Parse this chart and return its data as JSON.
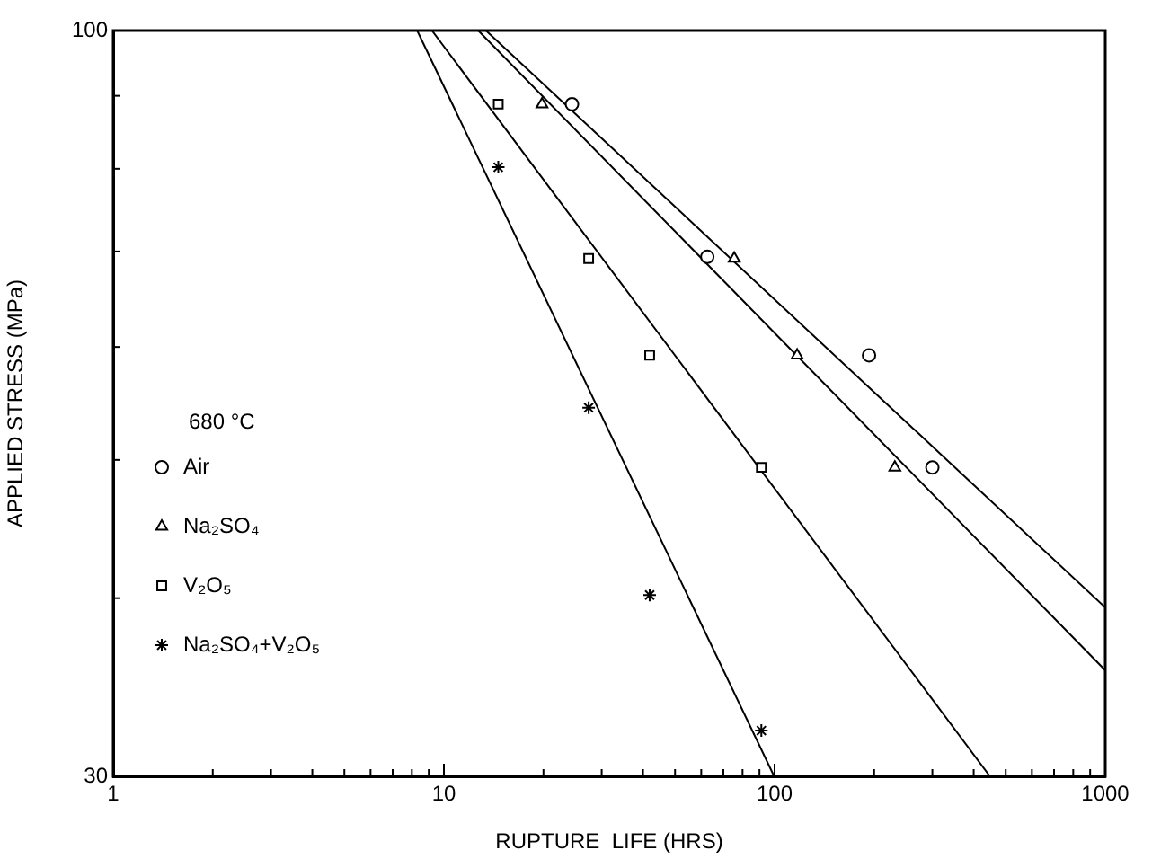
{
  "chart_data": {
    "type": "scatter",
    "xlabel": "RUPTURE  LIFE (HRS)",
    "ylabel": "APPLIED STRESS (MPa)",
    "annotations": [
      "680 °C"
    ],
    "log": "xy",
    "grid": false,
    "legend": "left",
    "xlim": [
      1,
      1000
    ],
    "ylim": [
      30,
      100
    ],
    "xticks": [
      1,
      {
        "value": 2,
        "label": null
      },
      {
        "value": 3,
        "label": null
      },
      {
        "value": 4,
        "label": null
      },
      {
        "value": 5,
        "label": null
      },
      {
        "value": 6,
        "label": null
      },
      {
        "value": 7,
        "label": null
      },
      {
        "value": 8,
        "label": null
      },
      {
        "value": 9,
        "label": null
      },
      10,
      {
        "value": 20,
        "label": null
      },
      {
        "value": 30,
        "label": null
      },
      {
        "value": 40,
        "label": null
      },
      {
        "value": 50,
        "label": null
      },
      {
        "value": 60,
        "label": null
      },
      {
        "value": 70,
        "label": null
      },
      {
        "value": 80,
        "label": null
      },
      {
        "value": 90,
        "label": null
      },
      100,
      {
        "value": 200,
        "label": null
      },
      {
        "value": 300,
        "label": null
      },
      {
        "value": 400,
        "label": null
      },
      {
        "value": 500,
        "label": null
      },
      {
        "value": 600,
        "label": null
      },
      {
        "value": 700,
        "label": null
      },
      {
        "value": 800,
        "label": null
      },
      {
        "value": 900,
        "label": null
      },
      1000
    ],
    "yticks": [
      30,
      {
        "value": 40,
        "label": null
      },
      {
        "value": 50,
        "label": null
      },
      {
        "value": 60,
        "label": null
      },
      {
        "value": 70,
        "label": null
      },
      {
        "value": 80,
        "label": null
      },
      {
        "value": 90,
        "label": null
      },
      100
    ],
    "series": [
      {
        "name": "Air",
        "type": "scatter",
        "marker": "circle",
        "color": "#000000",
        "x": [
          24.4,
          62.6,
          193,
          300
        ],
        "values": [
          88.8,
          69.4,
          59.2,
          49.4
        ]
      },
      {
        "name": "Na₂SO₄",
        "type": "scatter",
        "marker": "triangle",
        "color": "#000000",
        "x": [
          19.8,
          75.5,
          117,
          231
        ],
        "values": [
          88.8,
          69.2,
          59.2,
          49.4
        ]
      },
      {
        "name": "V₂O₅",
        "type": "scatter",
        "marker": "square",
        "color": "#000000",
        "x": [
          14.6,
          27.4,
          41.9,
          91.2
        ],
        "values": [
          88.8,
          69.2,
          59.2,
          49.4
        ]
      },
      {
        "name": "Na₂SO₄+V₂O₅",
        "type": "scatter",
        "marker": "cross",
        "color": "#000000",
        "x": [
          14.6,
          27.4,
          41.9,
          91.2
        ],
        "values": [
          80.2,
          54.4,
          40.2,
          32.3
        ]
      },
      {
        "type": "line",
        "marker": "none",
        "line_style": "solid",
        "color": "#000000",
        "x": [
          13.4,
          1000
        ],
        "values": [
          100,
          39.4
        ]
      },
      {
        "type": "line",
        "marker": "none",
        "line_style": "solid",
        "color": "#000000",
        "x": [
          12.7,
          1000
        ],
        "values": [
          100,
          35.6
        ]
      },
      {
        "type": "line",
        "marker": "none",
        "line_style": "solid",
        "color": "#000000",
        "x": [
          9.2,
          448
        ],
        "values": [
          100,
          30
        ]
      },
      {
        "type": "line",
        "marker": "none",
        "line_style": "solid",
        "color": "#000000",
        "x": [
          8.3,
          99.7
        ],
        "values": [
          100,
          30
        ]
      }
    ]
  }
}
